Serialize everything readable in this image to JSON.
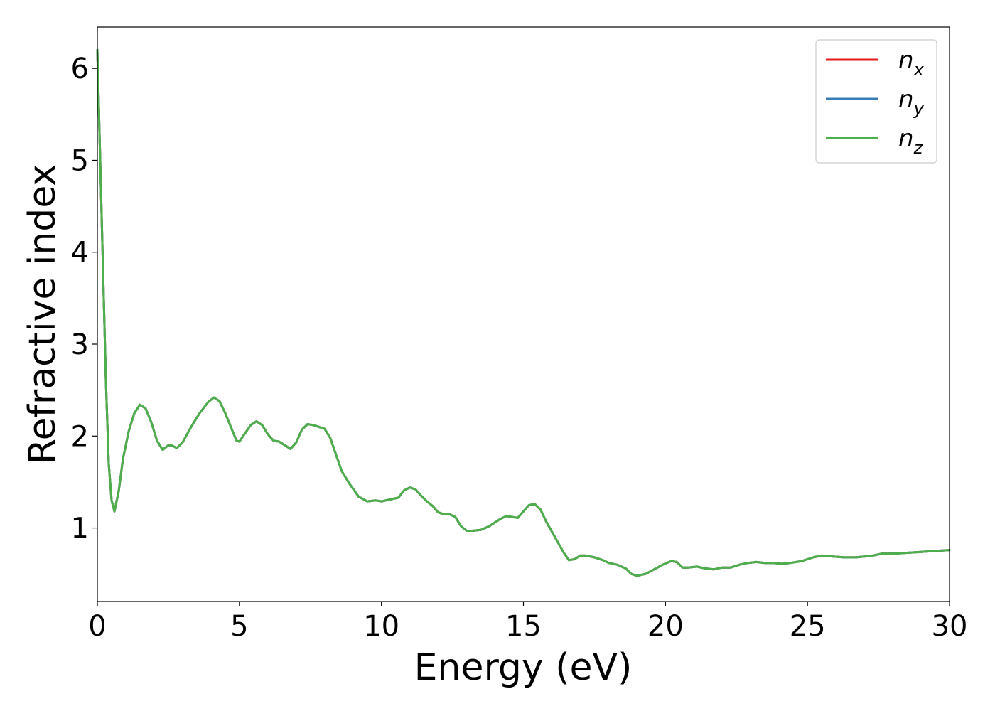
{
  "chart_data": {
    "type": "line",
    "xlabel": "Energy (eV)",
    "ylabel": "Refractive index",
    "xlim": [
      0,
      30
    ],
    "ylim": [
      0.2,
      6.45
    ],
    "xticks": [
      "0",
      "5",
      "10",
      "15",
      "20",
      "25",
      "30"
    ],
    "yticks": [
      "1",
      "2",
      "3",
      "4",
      "5",
      "6"
    ],
    "grid": false,
    "legend_position": "top-right",
    "series": [
      {
        "name": "n_x",
        "legend_base": "n",
        "legend_sub": "x",
        "color": "#e41a1c",
        "x": [
          0.0,
          0.1,
          0.2,
          0.3,
          0.4,
          0.5,
          0.6,
          0.75,
          0.9,
          1.1,
          1.3,
          1.5,
          1.7,
          1.9,
          2.1,
          2.3,
          2.5,
          2.6,
          2.8,
          3.0,
          3.3,
          3.6,
          3.9,
          4.1,
          4.3,
          4.5,
          4.7,
          4.9,
          5.0,
          5.2,
          5.4,
          5.6,
          5.8,
          6.0,
          6.2,
          6.4,
          6.6,
          6.8,
          7.0,
          7.2,
          7.4,
          7.6,
          7.8,
          8.0,
          8.2,
          8.4,
          8.6,
          8.9,
          9.2,
          9.5,
          9.8,
          10.0,
          10.3,
          10.6,
          10.8,
          11.0,
          11.2,
          11.4,
          11.6,
          11.8,
          12.0,
          12.2,
          12.4,
          12.6,
          12.8,
          13.0,
          13.2,
          13.5,
          13.8,
          14.0,
          14.2,
          14.4,
          14.6,
          14.8,
          15.0,
          15.2,
          15.4,
          15.6,
          15.8,
          16.0,
          16.2,
          16.4,
          16.6,
          16.8,
          17.0,
          17.2,
          17.5,
          17.8,
          18.0,
          18.3,
          18.6,
          18.8,
          19.0,
          19.3,
          19.6,
          19.9,
          20.2,
          20.4,
          20.6,
          20.8,
          21.1,
          21.4,
          21.7,
          22.0,
          22.3,
          22.6,
          22.9,
          23.2,
          23.5,
          23.8,
          24.1,
          24.4,
          24.8,
          25.2,
          25.5,
          25.9,
          26.3,
          26.7,
          27.0,
          27.3,
          27.6,
          28.0,
          28.5,
          29.0,
          29.5,
          30.0
        ],
        "y": [
          6.2,
          5.0,
          3.8,
          2.6,
          1.7,
          1.3,
          1.18,
          1.4,
          1.75,
          2.05,
          2.25,
          2.34,
          2.3,
          2.15,
          1.95,
          1.85,
          1.9,
          1.9,
          1.87,
          1.93,
          2.1,
          2.25,
          2.37,
          2.42,
          2.38,
          2.25,
          2.1,
          1.95,
          1.94,
          2.03,
          2.12,
          2.16,
          2.12,
          2.02,
          1.95,
          1.94,
          1.9,
          1.86,
          1.93,
          2.07,
          2.13,
          2.12,
          2.1,
          2.08,
          1.98,
          1.8,
          1.62,
          1.47,
          1.34,
          1.29,
          1.3,
          1.29,
          1.31,
          1.33,
          1.41,
          1.44,
          1.42,
          1.35,
          1.29,
          1.24,
          1.17,
          1.15,
          1.15,
          1.12,
          1.02,
          0.97,
          0.97,
          0.98,
          1.02,
          1.06,
          1.1,
          1.13,
          1.12,
          1.11,
          1.18,
          1.25,
          1.26,
          1.2,
          1.07,
          0.96,
          0.85,
          0.74,
          0.65,
          0.66,
          0.7,
          0.7,
          0.68,
          0.65,
          0.62,
          0.6,
          0.56,
          0.5,
          0.48,
          0.5,
          0.55,
          0.6,
          0.64,
          0.63,
          0.57,
          0.57,
          0.58,
          0.56,
          0.55,
          0.57,
          0.57,
          0.6,
          0.62,
          0.63,
          0.62,
          0.62,
          0.61,
          0.62,
          0.64,
          0.68,
          0.7,
          0.69,
          0.68,
          0.68,
          0.69,
          0.7,
          0.72,
          0.72,
          0.73,
          0.74,
          0.75,
          0.76
        ]
      },
      {
        "name": "n_y",
        "legend_base": "n",
        "legend_sub": "y",
        "color": "#377eb8",
        "x": [
          0.0,
          0.1,
          0.2,
          0.3,
          0.4,
          0.5,
          0.6,
          0.75,
          0.9,
          1.1,
          1.3,
          1.5,
          1.7,
          1.9,
          2.1,
          2.3,
          2.5,
          2.6,
          2.8,
          3.0,
          3.3,
          3.6,
          3.9,
          4.1,
          4.3,
          4.5,
          4.7,
          4.9,
          5.0,
          5.2,
          5.4,
          5.6,
          5.8,
          6.0,
          6.2,
          6.4,
          6.6,
          6.8,
          7.0,
          7.2,
          7.4,
          7.6,
          7.8,
          8.0,
          8.2,
          8.4,
          8.6,
          8.9,
          9.2,
          9.5,
          9.8,
          10.0,
          10.3,
          10.6,
          10.8,
          11.0,
          11.2,
          11.4,
          11.6,
          11.8,
          12.0,
          12.2,
          12.4,
          12.6,
          12.8,
          13.0,
          13.2,
          13.5,
          13.8,
          14.0,
          14.2,
          14.4,
          14.6,
          14.8,
          15.0,
          15.2,
          15.4,
          15.6,
          15.8,
          16.0,
          16.2,
          16.4,
          16.6,
          16.8,
          17.0,
          17.2,
          17.5,
          17.8,
          18.0,
          18.3,
          18.6,
          18.8,
          19.0,
          19.3,
          19.6,
          19.9,
          20.2,
          20.4,
          20.6,
          20.8,
          21.1,
          21.4,
          21.7,
          22.0,
          22.3,
          22.6,
          22.9,
          23.2,
          23.5,
          23.8,
          24.1,
          24.4,
          24.8,
          25.2,
          25.5,
          25.9,
          26.3,
          26.7,
          27.0,
          27.3,
          27.6,
          28.0,
          28.5,
          29.0,
          29.5,
          30.0
        ],
        "y": [
          6.2,
          5.0,
          3.8,
          2.6,
          1.7,
          1.3,
          1.18,
          1.4,
          1.75,
          2.05,
          2.25,
          2.34,
          2.3,
          2.15,
          1.95,
          1.85,
          1.9,
          1.9,
          1.87,
          1.93,
          2.1,
          2.25,
          2.37,
          2.42,
          2.38,
          2.25,
          2.1,
          1.95,
          1.94,
          2.03,
          2.12,
          2.16,
          2.12,
          2.02,
          1.95,
          1.94,
          1.9,
          1.86,
          1.93,
          2.07,
          2.13,
          2.12,
          2.1,
          2.08,
          1.98,
          1.8,
          1.62,
          1.47,
          1.34,
          1.29,
          1.3,
          1.29,
          1.31,
          1.33,
          1.41,
          1.44,
          1.42,
          1.35,
          1.29,
          1.24,
          1.17,
          1.15,
          1.15,
          1.12,
          1.02,
          0.97,
          0.97,
          0.98,
          1.02,
          1.06,
          1.1,
          1.13,
          1.12,
          1.11,
          1.18,
          1.25,
          1.26,
          1.2,
          1.07,
          0.96,
          0.85,
          0.74,
          0.65,
          0.66,
          0.7,
          0.7,
          0.68,
          0.65,
          0.62,
          0.6,
          0.56,
          0.5,
          0.48,
          0.5,
          0.55,
          0.6,
          0.64,
          0.63,
          0.57,
          0.57,
          0.58,
          0.56,
          0.55,
          0.57,
          0.57,
          0.6,
          0.62,
          0.63,
          0.62,
          0.62,
          0.61,
          0.62,
          0.64,
          0.68,
          0.7,
          0.69,
          0.68,
          0.68,
          0.69,
          0.7,
          0.72,
          0.72,
          0.73,
          0.74,
          0.75,
          0.76
        ]
      },
      {
        "name": "n_z",
        "legend_base": "n",
        "legend_sub": "z",
        "color": "#4daf4a",
        "x": [
          0.0,
          0.1,
          0.2,
          0.3,
          0.4,
          0.5,
          0.6,
          0.75,
          0.9,
          1.1,
          1.3,
          1.5,
          1.7,
          1.9,
          2.1,
          2.3,
          2.5,
          2.6,
          2.8,
          3.0,
          3.3,
          3.6,
          3.9,
          4.1,
          4.3,
          4.5,
          4.7,
          4.9,
          5.0,
          5.2,
          5.4,
          5.6,
          5.8,
          6.0,
          6.2,
          6.4,
          6.6,
          6.8,
          7.0,
          7.2,
          7.4,
          7.6,
          7.8,
          8.0,
          8.2,
          8.4,
          8.6,
          8.9,
          9.2,
          9.5,
          9.8,
          10.0,
          10.3,
          10.6,
          10.8,
          11.0,
          11.2,
          11.4,
          11.6,
          11.8,
          12.0,
          12.2,
          12.4,
          12.6,
          12.8,
          13.0,
          13.2,
          13.5,
          13.8,
          14.0,
          14.2,
          14.4,
          14.6,
          14.8,
          15.0,
          15.2,
          15.4,
          15.6,
          15.8,
          16.0,
          16.2,
          16.4,
          16.6,
          16.8,
          17.0,
          17.2,
          17.5,
          17.8,
          18.0,
          18.3,
          18.6,
          18.8,
          19.0,
          19.3,
          19.6,
          19.9,
          20.2,
          20.4,
          20.6,
          20.8,
          21.1,
          21.4,
          21.7,
          22.0,
          22.3,
          22.6,
          22.9,
          23.2,
          23.5,
          23.8,
          24.1,
          24.4,
          24.8,
          25.2,
          25.5,
          25.9,
          26.3,
          26.7,
          27.0,
          27.3,
          27.6,
          28.0,
          28.5,
          29.0,
          29.5,
          30.0
        ],
        "y": [
          6.2,
          5.0,
          3.8,
          2.6,
          1.7,
          1.3,
          1.18,
          1.4,
          1.75,
          2.05,
          2.25,
          2.34,
          2.3,
          2.15,
          1.95,
          1.85,
          1.9,
          1.9,
          1.87,
          1.93,
          2.1,
          2.25,
          2.37,
          2.42,
          2.38,
          2.25,
          2.1,
          1.95,
          1.94,
          2.03,
          2.12,
          2.16,
          2.12,
          2.02,
          1.95,
          1.94,
          1.9,
          1.86,
          1.93,
          2.07,
          2.13,
          2.12,
          2.1,
          2.08,
          1.98,
          1.8,
          1.62,
          1.47,
          1.34,
          1.29,
          1.3,
          1.29,
          1.31,
          1.33,
          1.41,
          1.44,
          1.42,
          1.35,
          1.29,
          1.24,
          1.17,
          1.15,
          1.15,
          1.12,
          1.02,
          0.97,
          0.97,
          0.98,
          1.02,
          1.06,
          1.1,
          1.13,
          1.12,
          1.11,
          1.18,
          1.25,
          1.26,
          1.2,
          1.07,
          0.96,
          0.85,
          0.74,
          0.65,
          0.66,
          0.7,
          0.7,
          0.68,
          0.65,
          0.62,
          0.6,
          0.56,
          0.5,
          0.48,
          0.5,
          0.55,
          0.6,
          0.64,
          0.63,
          0.57,
          0.57,
          0.58,
          0.56,
          0.55,
          0.57,
          0.57,
          0.6,
          0.62,
          0.63,
          0.62,
          0.62,
          0.61,
          0.62,
          0.64,
          0.68,
          0.7,
          0.69,
          0.68,
          0.68,
          0.69,
          0.7,
          0.72,
          0.72,
          0.73,
          0.74,
          0.75,
          0.76
        ]
      }
    ]
  }
}
